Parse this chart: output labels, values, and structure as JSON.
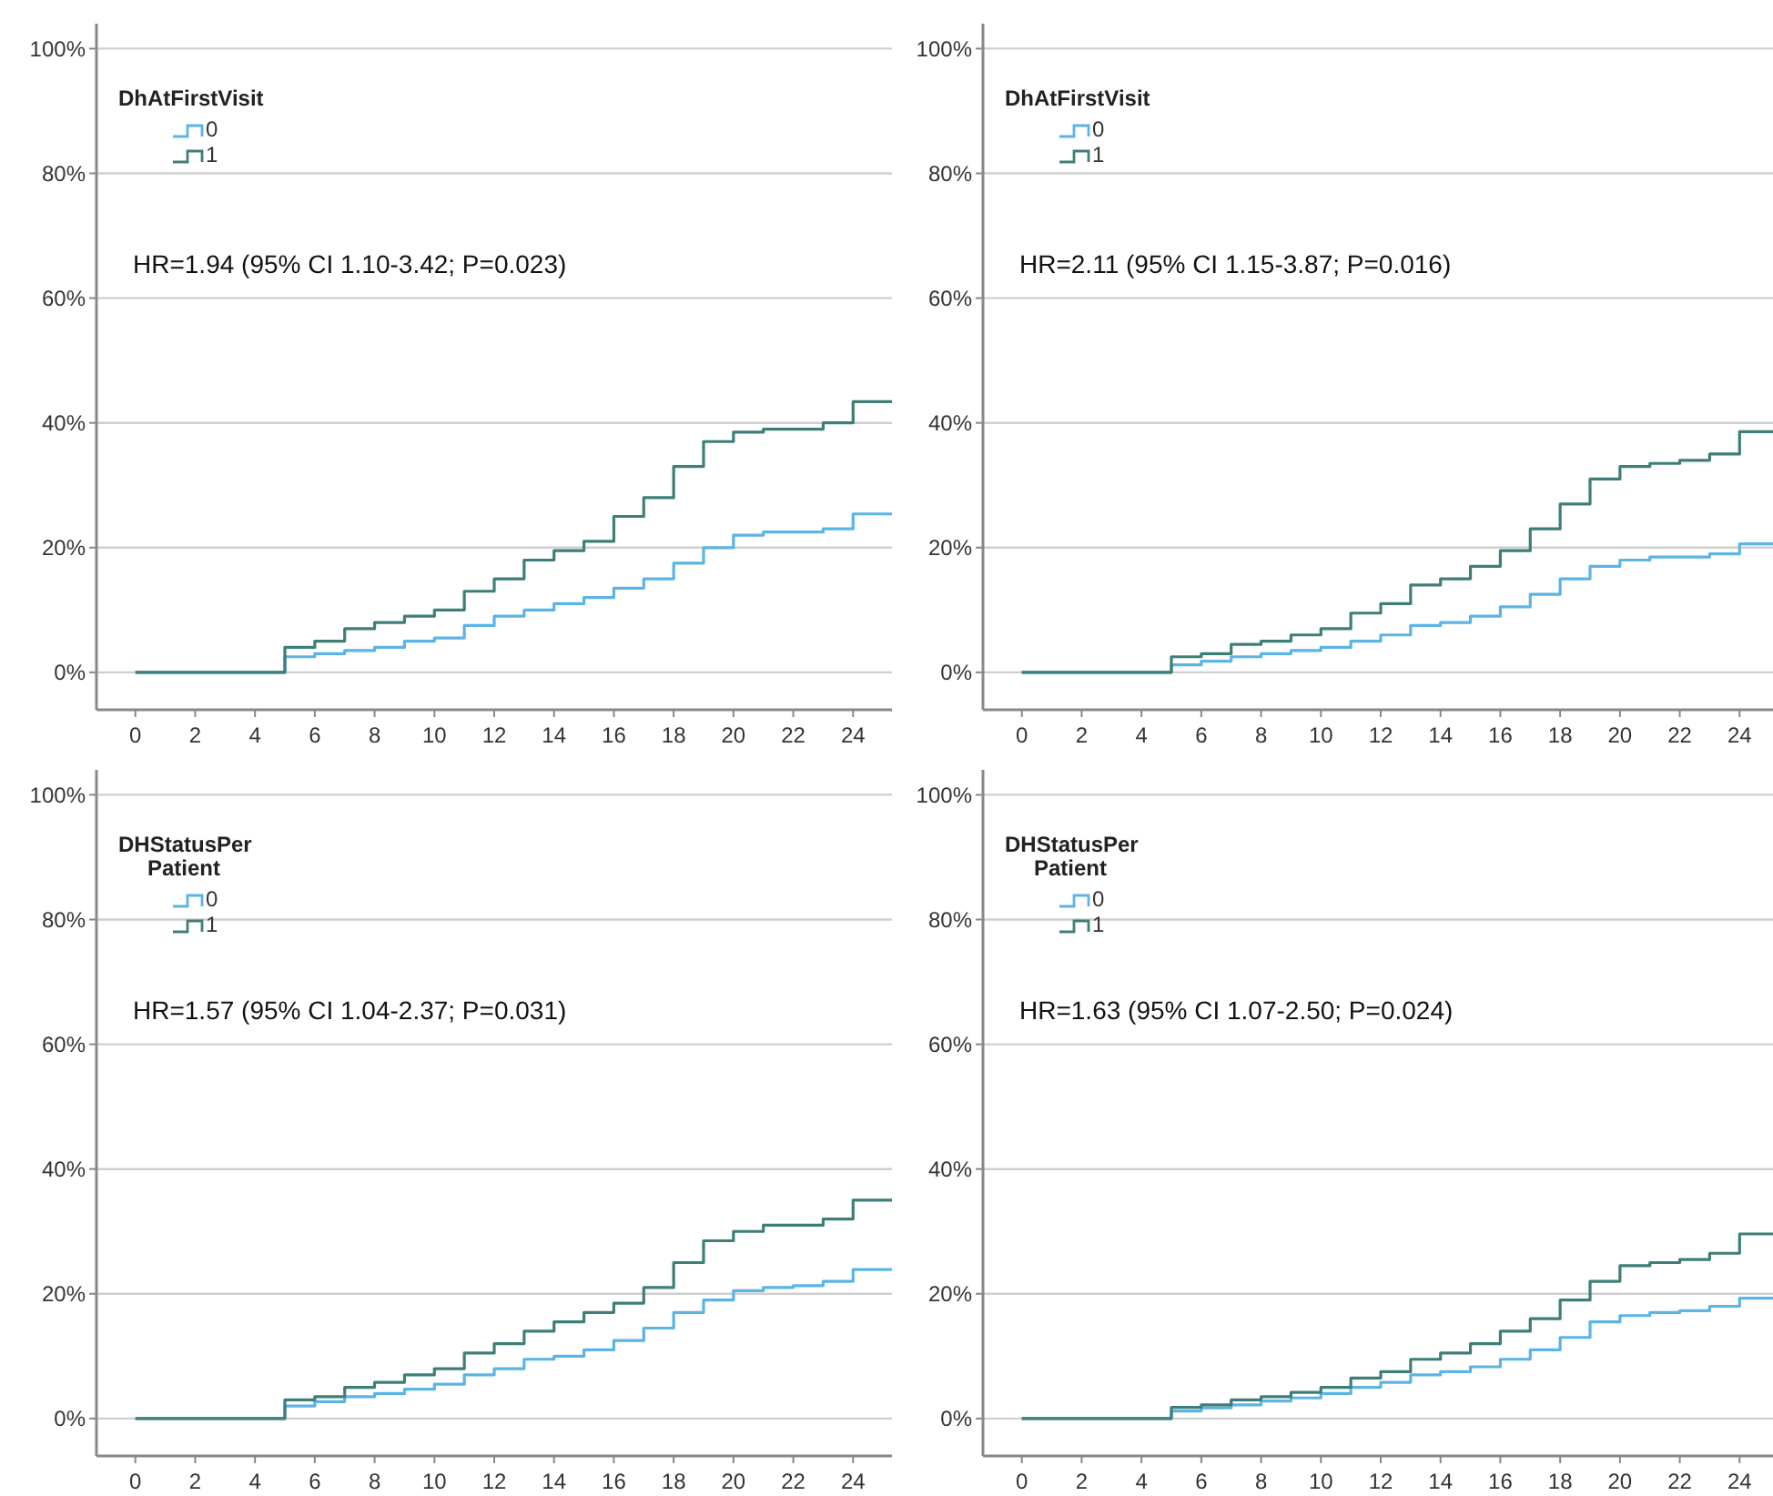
{
  "chart_data": [
    {
      "type": "step",
      "legend_title": "DhAtFirstVisit",
      "legend": "top left",
      "grid": "y",
      "annotations": [
        "HR=1.94 (95% CI 1.10-3.42; P=0.023)"
      ],
      "xlim": [
        -1.3,
        25.3
      ],
      "xticks": [
        0,
        2,
        4,
        6,
        8,
        10,
        12,
        14,
        16,
        18,
        20,
        22,
        24
      ],
      "ylim": [
        -6,
        104
      ],
      "yticks": [
        {
          "value": 0,
          "label": "0%"
        },
        {
          "value": 20,
          "label": "20%"
        },
        {
          "value": 40,
          "label": "40%"
        },
        {
          "value": 60,
          "label": "60%"
        },
        {
          "value": 80,
          "label": "80%"
        },
        {
          "value": 100,
          "label": "100%"
        }
      ],
      "x": [
        0,
        4.2,
        5,
        6,
        7,
        8,
        9,
        10,
        11,
        12,
        13,
        14,
        15,
        16,
        17,
        18,
        19,
        20,
        21,
        22,
        23,
        24,
        25.3
      ],
      "series": [
        {
          "name": "0",
          "color": "#5ab4e5",
          "values": [
            0,
            0,
            2.5,
            3,
            3.5,
            4,
            5,
            5.5,
            7.5,
            9,
            10,
            11,
            12,
            13.5,
            15,
            17.5,
            20,
            22,
            22.5,
            22.5,
            23,
            25.4,
            25.4
          ]
        },
        {
          "name": "1",
          "color": "#3d7f78",
          "values": [
            0,
            0,
            4,
            5,
            7,
            8,
            9,
            10,
            13,
            15,
            18,
            19.5,
            21,
            25,
            28,
            33,
            37,
            38.5,
            39,
            39,
            40,
            43.4,
            43.4
          ]
        }
      ]
    },
    {
      "type": "step",
      "legend_title": "DhAtFirstVisit",
      "legend": "top left",
      "grid": "y",
      "annotations": [
        "HR=2.11 (95% CI 1.15-3.87; P=0.016)"
      ],
      "xlim": [
        -1.3,
        25.3
      ],
      "xticks": [
        0,
        2,
        4,
        6,
        8,
        10,
        12,
        14,
        16,
        18,
        20,
        22,
        24
      ],
      "ylim": [
        -6,
        104
      ],
      "yticks": [
        {
          "value": 0,
          "label": "0%"
        },
        {
          "value": 20,
          "label": "20%"
        },
        {
          "value": 40,
          "label": "40%"
        },
        {
          "value": 60,
          "label": "60%"
        },
        {
          "value": 80,
          "label": "80%"
        },
        {
          "value": 100,
          "label": "100%"
        }
      ],
      "x": [
        0,
        4.2,
        5,
        6,
        7,
        8,
        9,
        10,
        11,
        12,
        13,
        14,
        15,
        16,
        17,
        18,
        19,
        20,
        21,
        22,
        23,
        24,
        25.3
      ],
      "series": [
        {
          "name": "0",
          "color": "#5ab4e5",
          "values": [
            0,
            0,
            1.2,
            1.8,
            2.5,
            3,
            3.5,
            4,
            5,
            6,
            7.5,
            8,
            9,
            10.5,
            12.5,
            15,
            17,
            18,
            18.5,
            18.5,
            19,
            20.6,
            20.6
          ]
        },
        {
          "name": "1",
          "color": "#3d7f78",
          "values": [
            0,
            0,
            2.5,
            3,
            4.5,
            5,
            6,
            7,
            9.5,
            11,
            14,
            15,
            17,
            19.5,
            23,
            27,
            31,
            33,
            33.5,
            34,
            35,
            38.6,
            38.6
          ]
        }
      ]
    },
    {
      "type": "step",
      "legend_title": "DHStatusPer Patient",
      "legend": "top left",
      "grid": "y",
      "annotations": [
        "HR=1.57 (95% CI 1.04-2.37; P=0.031)"
      ],
      "xlim": [
        -1.3,
        25.3
      ],
      "xticks": [
        0,
        2,
        4,
        6,
        8,
        10,
        12,
        14,
        16,
        18,
        20,
        22,
        24
      ],
      "ylim": [
        -6,
        104
      ],
      "yticks": [
        {
          "value": 0,
          "label": "0%"
        },
        {
          "value": 20,
          "label": "20%"
        },
        {
          "value": 40,
          "label": "40%"
        },
        {
          "value": 60,
          "label": "60%"
        },
        {
          "value": 80,
          "label": "80%"
        },
        {
          "value": 100,
          "label": "100%"
        }
      ],
      "x": [
        0,
        4.2,
        5,
        6,
        7,
        8,
        9,
        10,
        11,
        12,
        13,
        14,
        15,
        16,
        17,
        18,
        19,
        20,
        21,
        22,
        23,
        24,
        25.3
      ],
      "series": [
        {
          "name": "0",
          "color": "#5ab4e5",
          "values": [
            0,
            0,
            2,
            2.7,
            3.5,
            4,
            4.7,
            5.5,
            7,
            8,
            9.5,
            10,
            11,
            12.5,
            14.5,
            17,
            19,
            20.5,
            21,
            21.3,
            22,
            23.9,
            23.9
          ]
        },
        {
          "name": "1",
          "color": "#3d7f78",
          "values": [
            0,
            0,
            3,
            3.5,
            5,
            5.8,
            7,
            8,
            10.5,
            12,
            14,
            15.5,
            17,
            18.5,
            21,
            25,
            28.5,
            30,
            31,
            31,
            32,
            35,
            35
          ]
        }
      ]
    },
    {
      "type": "step",
      "legend_title": "DHStatusPer Patient",
      "legend": "top left",
      "grid": "y",
      "annotations": [
        "HR=1.63 (95% CI 1.07-2.50; P=0.024)"
      ],
      "xlim": [
        -1.3,
        25.3
      ],
      "xticks": [
        0,
        2,
        4,
        6,
        8,
        10,
        12,
        14,
        16,
        18,
        20,
        22,
        24
      ],
      "ylim": [
        -6,
        104
      ],
      "yticks": [
        {
          "value": 0,
          "label": "0%"
        },
        {
          "value": 20,
          "label": "20%"
        },
        {
          "value": 40,
          "label": "40%"
        },
        {
          "value": 60,
          "label": "60%"
        },
        {
          "value": 80,
          "label": "80%"
        },
        {
          "value": 100,
          "label": "100%"
        }
      ],
      "x": [
        0,
        4.2,
        5,
        6,
        7,
        8,
        9,
        10,
        11,
        12,
        13,
        14,
        15,
        16,
        17,
        18,
        19,
        20,
        21,
        22,
        23,
        24,
        25.3
      ],
      "series": [
        {
          "name": "0",
          "color": "#5ab4e5",
          "values": [
            0,
            0,
            1.2,
            1.7,
            2.2,
            2.8,
            3.3,
            4,
            5,
            5.8,
            7,
            7.5,
            8.3,
            9.5,
            11,
            13,
            15.5,
            16.5,
            17,
            17.3,
            18,
            19.3,
            19.3
          ]
        },
        {
          "name": "1",
          "color": "#3d7f78",
          "values": [
            0,
            0,
            1.8,
            2.2,
            3,
            3.5,
            4.2,
            5,
            6.5,
            7.5,
            9.5,
            10.5,
            12,
            14,
            16,
            19,
            22,
            24.5,
            25,
            25.5,
            26.5,
            29.6,
            29.6
          ]
        }
      ]
    }
  ]
}
